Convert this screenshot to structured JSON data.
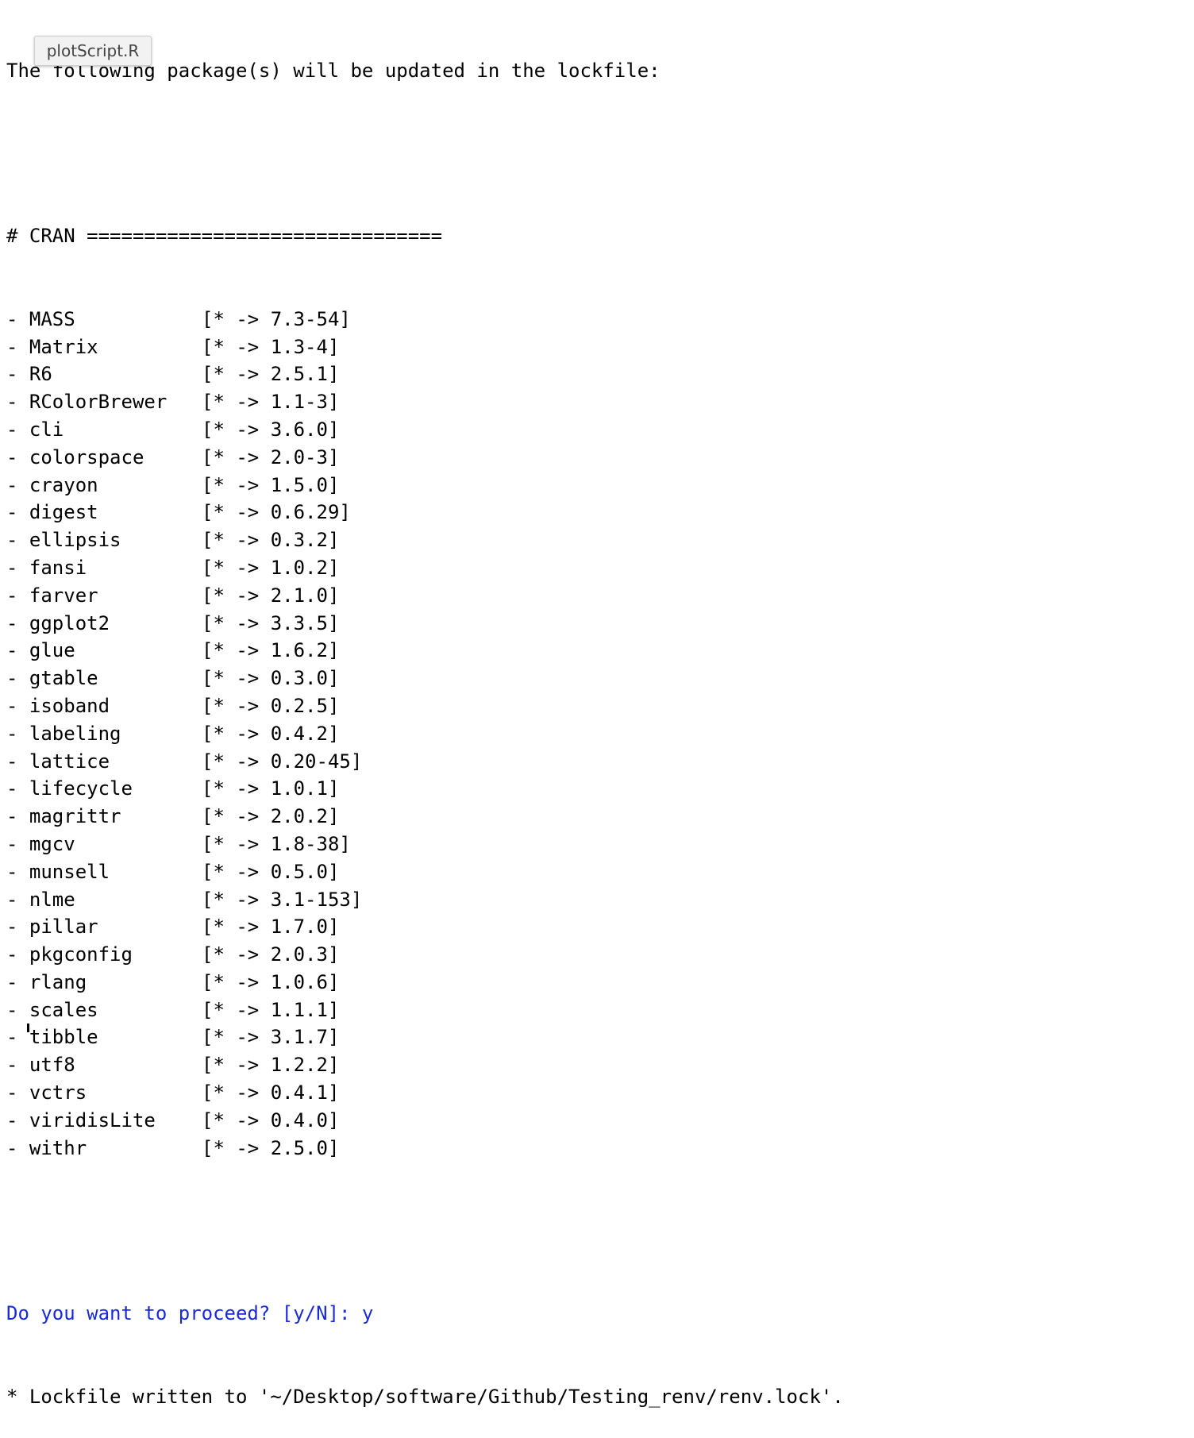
{
  "header_line": "The following package(s) will be updated in the lockfile:",
  "tooltip": "plotScript.R",
  "section_header": "# CRAN ===============================",
  "packages": [
    {
      "name": "MASS",
      "version": "[* -> 7.3-54]"
    },
    {
      "name": "Matrix",
      "version": "[* -> 1.3-4]"
    },
    {
      "name": "R6",
      "version": "[* -> 2.5.1]"
    },
    {
      "name": "RColorBrewer",
      "version": "[* -> 1.1-3]"
    },
    {
      "name": "cli",
      "version": "[* -> 3.6.0]"
    },
    {
      "name": "colorspace",
      "version": "[* -> 2.0-3]"
    },
    {
      "name": "crayon",
      "version": "[* -> 1.5.0]"
    },
    {
      "name": "digest",
      "version": "[* -> 0.6.29]"
    },
    {
      "name": "ellipsis",
      "version": "[* -> 0.3.2]"
    },
    {
      "name": "fansi",
      "version": "[* -> 1.0.2]"
    },
    {
      "name": "farver",
      "version": "[* -> 2.1.0]"
    },
    {
      "name": "ggplot2",
      "version": "[* -> 3.3.5]"
    },
    {
      "name": "glue",
      "version": "[* -> 1.6.2]"
    },
    {
      "name": "gtable",
      "version": "[* -> 0.3.0]"
    },
    {
      "name": "isoband",
      "version": "[* -> 0.2.5]"
    },
    {
      "name": "labeling",
      "version": "[* -> 0.4.2]"
    },
    {
      "name": "lattice",
      "version": "[* -> 0.20-45]"
    },
    {
      "name": "lifecycle",
      "version": "[* -> 1.0.1]"
    },
    {
      "name": "magrittr",
      "version": "[* -> 2.0.2]"
    },
    {
      "name": "mgcv",
      "version": "[* -> 1.8-38]"
    },
    {
      "name": "munsell",
      "version": "[* -> 0.5.0]"
    },
    {
      "name": "nlme",
      "version": "[* -> 3.1-153]"
    },
    {
      "name": "pillar",
      "version": "[* -> 1.7.0]"
    },
    {
      "name": "pkgconfig",
      "version": "[* -> 2.0.3]"
    },
    {
      "name": "rlang",
      "version": "[* -> 1.0.6]"
    },
    {
      "name": "scales",
      "version": "[* -> 1.1.1]"
    },
    {
      "name": "tibble",
      "version": "[* -> 3.1.7]"
    },
    {
      "name": "utf8",
      "version": "[* -> 1.2.2]"
    },
    {
      "name": "vctrs",
      "version": "[* -> 0.4.1]"
    },
    {
      "name": "viridisLite",
      "version": "[* -> 0.4.0]"
    },
    {
      "name": "withr",
      "version": "[* -> 2.5.0]"
    }
  ],
  "prompt": "Do you want to proceed? [y/N]: y",
  "result_line": "* Lockfile written to '~/Desktop/software/Github/Testing_renv/renv.lock'.",
  "colors": {
    "prompt_text": "#1a2ad6",
    "output_text": "#000000",
    "tooltip_bg": "#f2f2f2"
  }
}
